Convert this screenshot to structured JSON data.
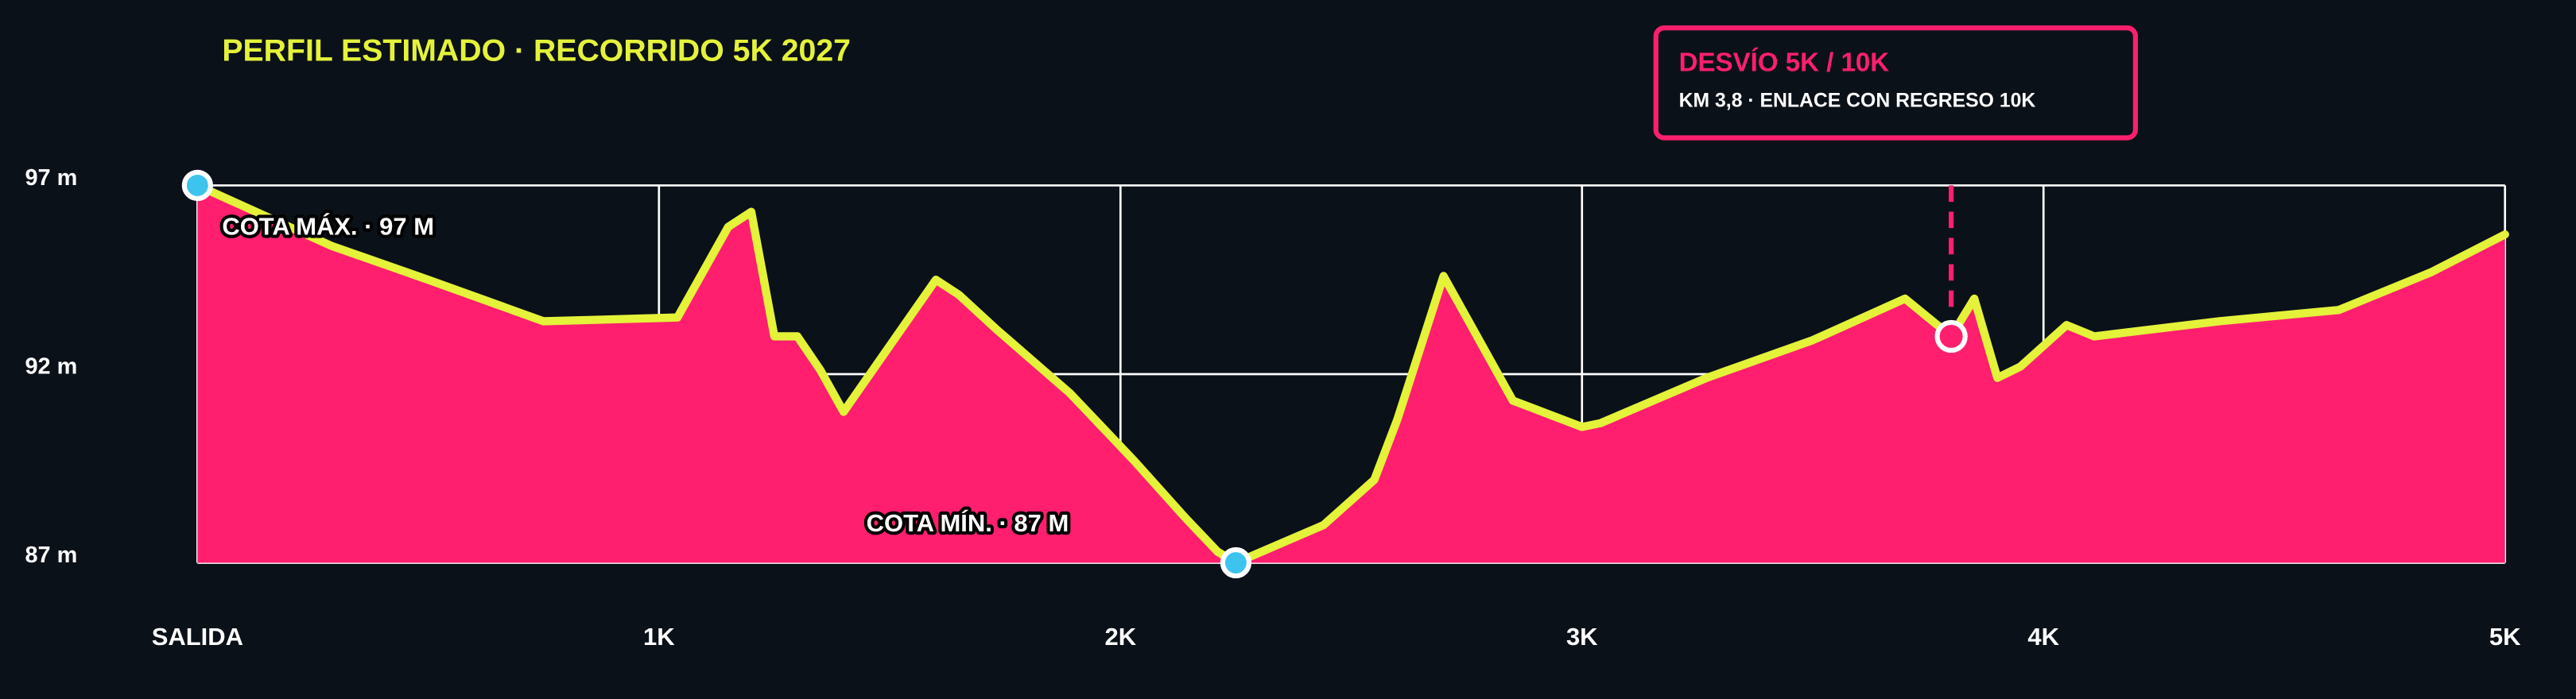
{
  "chart_data": {
    "type": "area",
    "title": "PERFIL ESTIMADO · RECORRIDO 5K 2027",
    "x": [
      0,
      0.29,
      0.5,
      0.75,
      1.04,
      1.15,
      1.2,
      1.25,
      1.3,
      1.35,
      1.4,
      1.6,
      1.65,
      1.73,
      1.89,
      2.03,
      2.14,
      2.21,
      2.25,
      2.44,
      2.55,
      2.6,
      2.7,
      2.85,
      3.0,
      3.04,
      3.27,
      3.5,
      3.7,
      3.8,
      3.85,
      3.9,
      3.95,
      4.05,
      4.11,
      4.38,
      4.64,
      4.84,
      5.0
    ],
    "values": [
      97,
      95.4,
      94.5,
      93.4,
      93.5,
      95.9,
      96.3,
      93.0,
      93.0,
      92.1,
      91.0,
      94.5,
      94.1,
      93.2,
      91.5,
      89.7,
      88.2,
      87.3,
      87,
      88.0,
      89.2,
      90.8,
      94.6,
      91.3,
      90.6,
      90.7,
      91.9,
      92.9,
      94.0,
      93.0,
      94.0,
      91.9,
      92.2,
      93.3,
      93.0,
      93.4,
      93.7,
      94.7,
      95.7
    ],
    "fill_color": "#ff1f6e",
    "line_color": "#e4f23a",
    "xlim": [
      0,
      5
    ],
    "xticks": [
      {
        "value": 0,
        "label": "SALIDA"
      },
      {
        "value": 1,
        "label": "1K"
      },
      {
        "value": 2,
        "label": "2K"
      },
      {
        "value": 3,
        "label": "3K"
      },
      {
        "value": 4,
        "label": "4K"
      },
      {
        "value": 5,
        "label": "5K"
      }
    ],
    "ylim": [
      87,
      97
    ],
    "yticks": [
      {
        "value": 87,
        "label": "87 m"
      },
      {
        "value": 92,
        "label": "92 m"
      },
      {
        "value": 97,
        "label": "97 m"
      }
    ],
    "grid": true,
    "highlights": [
      {
        "label": "COTA MÁX. · 97 M",
        "x": 0,
        "y": 97
      },
      {
        "label": "COTA MÍN. · 87 M",
        "x": 2.25,
        "y": 87
      }
    ],
    "callout": {
      "title": "DESVÍO 5K / 10K",
      "text": "KM 3,8 · ENLACE CON REGRESO 10K",
      "x": 3.8,
      "y": 93.0
    }
  }
}
